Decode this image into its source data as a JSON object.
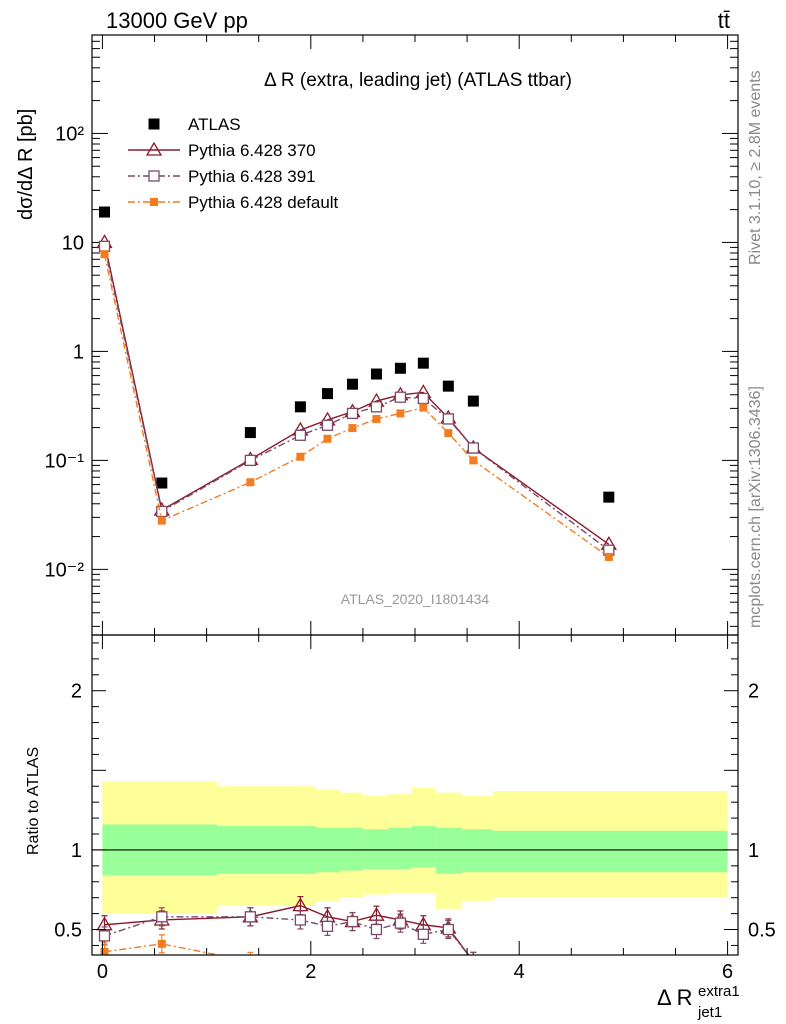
{
  "header": {
    "energy_label": "13000 GeV pp",
    "process_label": "tt̄"
  },
  "side_labels": {
    "rivet": "Rivet 3.1.10, ≥ 2.8M events",
    "mcplots": "mcplots.cern.ch [arXiv:1306.3436]"
  },
  "chart_data": [
    {
      "type": "scatter",
      "title": "Δ R (extra, leading jet) (ATLAS ttbar)",
      "analysis_tag": "ATLAS_2020_I1801434",
      "ylabel": "dσ/dΔ R [pb]",
      "yscale": "log",
      "ylim": [
        0.0025,
        800
      ],
      "xlim": [
        -0.1,
        6.1
      ],
      "ytick_labels": [
        "10⁻²",
        "10⁻¹",
        "1",
        "10",
        "10²"
      ],
      "legend_position": "top-left",
      "series": [
        {
          "name": "ATLAS",
          "color": "#000000",
          "marker": "square-filled",
          "line": "none",
          "x": [
            0.02,
            0.57,
            1.42,
            1.9,
            2.16,
            2.4,
            2.63,
            2.86,
            3.08,
            3.32,
            3.56,
            4.86
          ],
          "y": [
            19,
            0.062,
            0.18,
            0.31,
            0.41,
            0.5,
            0.62,
            0.7,
            0.78,
            0.48,
            0.35,
            0.046
          ]
        },
        {
          "name": "Pythia 6.428 370",
          "color": "#8b1a2b",
          "marker": "triangle-open",
          "line": "solid",
          "x": [
            0.02,
            0.57,
            1.42,
            1.9,
            2.16,
            2.4,
            2.63,
            2.86,
            3.08,
            3.32,
            3.56,
            4.86
          ],
          "y": [
            10,
            0.035,
            0.102,
            0.19,
            0.235,
            0.28,
            0.35,
            0.4,
            0.42,
            0.245,
            0.13,
            0.017
          ]
        },
        {
          "name": "Pythia 6.428 391",
          "color": "#7a4a66",
          "marker": "square-open",
          "line": "dashdot",
          "x": [
            0.02,
            0.57,
            1.42,
            1.9,
            2.16,
            2.4,
            2.63,
            2.86,
            3.08,
            3.32,
            3.56,
            4.86
          ],
          "y": [
            9.2,
            0.034,
            0.1,
            0.17,
            0.21,
            0.27,
            0.31,
            0.38,
            0.37,
            0.24,
            0.13,
            0.015
          ]
        },
        {
          "name": "Pythia 6.428 default",
          "color": "#f47c20",
          "marker": "square-filled-small",
          "line": "dashdot",
          "x": [
            0.02,
            0.57,
            1.42,
            1.9,
            2.16,
            2.4,
            2.63,
            2.86,
            3.08,
            3.32,
            3.56,
            4.86
          ],
          "y": [
            7.8,
            0.028,
            0.063,
            0.108,
            0.158,
            0.198,
            0.24,
            0.27,
            0.305,
            0.178,
            0.1,
            0.013
          ]
        }
      ]
    },
    {
      "type": "scatter",
      "title": "",
      "ylabel": "Ratio to ATLAS",
      "xlabel": "Δ R",
      "xlabel_sup": "extra1",
      "xlabel_sub": "jet1",
      "ylim": [
        0.34,
        2.35
      ],
      "xlim": [
        -0.1,
        6.1
      ],
      "xticks": [
        0,
        2,
        4,
        6
      ],
      "yticks": [
        0.5,
        1,
        2
      ],
      "reference_line": 1,
      "bands": {
        "bin_edges": [
          0.0,
          1.1,
          2.05,
          2.28,
          2.5,
          2.75,
          2.97,
          3.2,
          3.45,
          3.75,
          6.0
        ],
        "outer_low": [
          0.6,
          0.65,
          0.68,
          0.7,
          0.72,
          0.73,
          0.73,
          0.63,
          0.68,
          0.7
        ],
        "outer_high": [
          1.43,
          1.4,
          1.38,
          1.36,
          1.34,
          1.35,
          1.39,
          1.36,
          1.34,
          1.37
        ],
        "inner_low": [
          0.84,
          0.85,
          0.86,
          0.87,
          0.88,
          0.88,
          0.89,
          0.85,
          0.86,
          0.86
        ],
        "inner_high": [
          1.16,
          1.15,
          1.14,
          1.14,
          1.13,
          1.14,
          1.15,
          1.14,
          1.13,
          1.12
        ],
        "outer_color": "#ffff99",
        "inner_color": "#99ff99"
      },
      "series": [
        {
          "name": "Pythia 6.428 370",
          "color": "#8b1a2b",
          "marker": "triangle-open",
          "line": "solid",
          "x": [
            0.02,
            0.57,
            1.42,
            1.9,
            2.16,
            2.4,
            2.63,
            2.86,
            3.08,
            3.32,
            3.56
          ],
          "y": [
            0.53,
            0.56,
            0.58,
            0.65,
            0.58,
            0.55,
            0.59,
            0.56,
            0.53,
            0.51,
            0.3
          ]
        },
        {
          "name": "Pythia 6.428 391",
          "color": "#7a4a66",
          "marker": "square-open",
          "line": "dashdot",
          "x": [
            0.02,
            0.57,
            1.42,
            1.9,
            2.16,
            2.4,
            2.63,
            2.86,
            3.08,
            3.32,
            3.56
          ],
          "y": [
            0.46,
            0.58,
            0.58,
            0.56,
            0.52,
            0.55,
            0.5,
            0.54,
            0.47,
            0.5,
            0.3
          ]
        },
        {
          "name": "Pythia 6.428 default",
          "color": "#f47c20",
          "marker": "square-filled-small",
          "line": "dashdot",
          "x": [
            0.02,
            0.57,
            1.42
          ],
          "y": [
            0.36,
            0.41,
            0.3
          ]
        }
      ]
    }
  ]
}
